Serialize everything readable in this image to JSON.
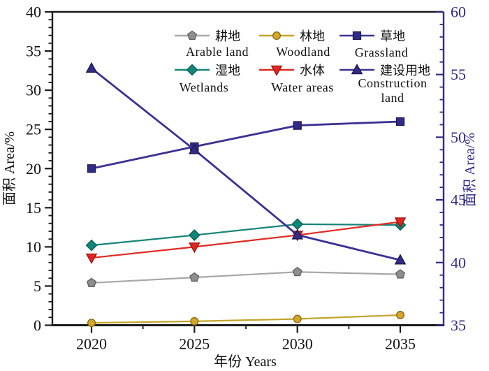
{
  "chart_data": {
    "type": "line",
    "title": "",
    "xlabel": "年份 Years",
    "ylabel_left": "面积 Area/%",
    "ylabel_right": "面积 Area/%",
    "x_categories": [
      "2020",
      "2025",
      "2030",
      "2035"
    ],
    "grid": false,
    "legend_position": "inside-top",
    "axes": {
      "x": {
        "title": "年份 Years",
        "ticks": [
          "2020",
          "2025",
          "2030",
          "2035"
        ]
      },
      "left": {
        "title": "面积 Area/%",
        "min": 0,
        "max": 40,
        "major": 5,
        "minor": 1,
        "color": "#1a1a1a"
      },
      "right": {
        "title": "面积 Area/%",
        "min": 35,
        "max": 60,
        "major": 5,
        "minor": 1,
        "color": "#312a85"
      }
    },
    "series": [
      {
        "name_zh": "耕地",
        "name_en": "Arable land",
        "axis": "left",
        "marker": "pentagon",
        "line_color": "#a8a8a8",
        "fill": "#8e8e8e",
        "edge": "#5f5f5f",
        "values": [
          5.4,
          6.1,
          6.8,
          6.5
        ]
      },
      {
        "name_zh": "林地",
        "name_en": "Woodland",
        "axis": "left",
        "marker": "circle",
        "line_color": "#c2a42c",
        "fill": "#d4a72c",
        "edge": "#8a6d14",
        "values": [
          0.3,
          0.5,
          0.8,
          1.3
        ]
      },
      {
        "name_zh": "草地",
        "name_en": "Grassland",
        "axis": "left",
        "marker": "square",
        "line_color": "#3a3192",
        "fill": "#322b86",
        "edge": "#1d1850",
        "values": [
          20.0,
          22.8,
          25.5,
          26.0
        ]
      },
      {
        "name_zh": "湿地",
        "name_en": "Wetlands",
        "axis": "left",
        "marker": "diamond",
        "line_color": "#188478",
        "fill": "#128579",
        "edge": "#0a5c54",
        "values": [
          10.2,
          11.5,
          12.9,
          12.8
        ]
      },
      {
        "name_zh": "水体",
        "name_en": "Water areas",
        "axis": "left",
        "marker": "triangle-down",
        "line_color": "#df2a23",
        "fill": "#e02721",
        "edge": "#9c1512",
        "values": [
          8.6,
          10.0,
          11.5,
          13.2
        ]
      },
      {
        "name_zh": "建设用地",
        "name_en": "Construction land",
        "axis": "right",
        "marker": "triangle-up",
        "line_color": "#3a3192",
        "fill": "#322b86",
        "edge": "#1d1850",
        "en_two_lines": true,
        "values": [
          55.5,
          49.0,
          42.2,
          40.2
        ]
      }
    ]
  }
}
